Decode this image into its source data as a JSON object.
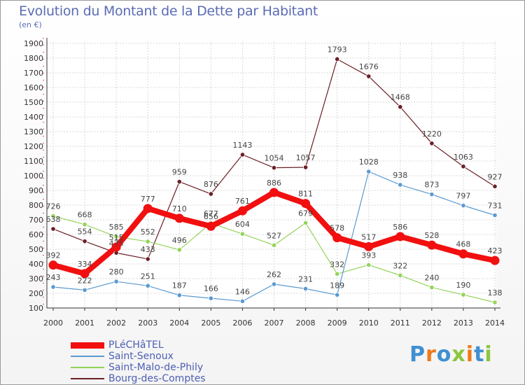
{
  "header": {
    "title": "Evolution du Montant de la Dette par Habitant",
    "unit": "(en €)"
  },
  "logo": {
    "text": "Proxiti"
  },
  "colors": {
    "title": "#5a6bb5",
    "axis": "#333333",
    "grid": "#d8d8d8",
    "logo_blue": "#3f8fd2",
    "logo_orange": "#ee7a1c",
    "logo_green": "#8cc63f"
  },
  "chart_data": {
    "type": "line",
    "x": [
      "2000",
      "2001",
      "2002",
      "2003",
      "2004",
      "2005",
      "2006",
      "2007",
      "2008",
      "2009",
      "2010",
      "2011",
      "2012",
      "2013",
      "2014"
    ],
    "ylim": [
      100,
      1900
    ],
    "yticks": [
      100,
      200,
      300,
      400,
      500,
      600,
      700,
      800,
      900,
      1000,
      1100,
      1200,
      1300,
      1400,
      1500,
      1600,
      1700,
      1800,
      1900
    ],
    "grid": true,
    "legend_position": "bottom-left",
    "series": [
      {
        "name": "Bourg-des-Comptes",
        "color": "#6b1f25",
        "width": 1.2,
        "values": [
          638,
          554,
          475,
          433,
          959,
          876,
          1143,
          1054,
          1057,
          1793,
          1676,
          1468,
          1220,
          1063,
          927
        ]
      },
      {
        "name": "Saint-Malo-de-Phily",
        "color": "#93d35a",
        "width": 1.2,
        "values": [
          726,
          668,
          585,
          552,
          496,
          677,
          604,
          527,
          679,
          332,
          393,
          322,
          240,
          190,
          138
        ]
      },
      {
        "name": "Saint-Senoux",
        "color": "#5b9ad1",
        "width": 1.2,
        "values": [
          243,
          222,
          280,
          251,
          187,
          166,
          146,
          262,
          231,
          189,
          1028,
          938,
          873,
          797,
          731
        ]
      },
      {
        "name": "PLéCHâTEL",
        "color": "#f20f0f",
        "width": 8,
        "values": [
          392,
          334,
          515,
          777,
          710,
          656,
          761,
          886,
          811,
          578,
          517,
          586,
          528,
          468,
          423
        ]
      }
    ],
    "legend_order": [
      "PLéCHâTEL",
      "Saint-Senoux",
      "Saint-Malo-de-Phily",
      "Bourg-des-Comptes"
    ]
  }
}
